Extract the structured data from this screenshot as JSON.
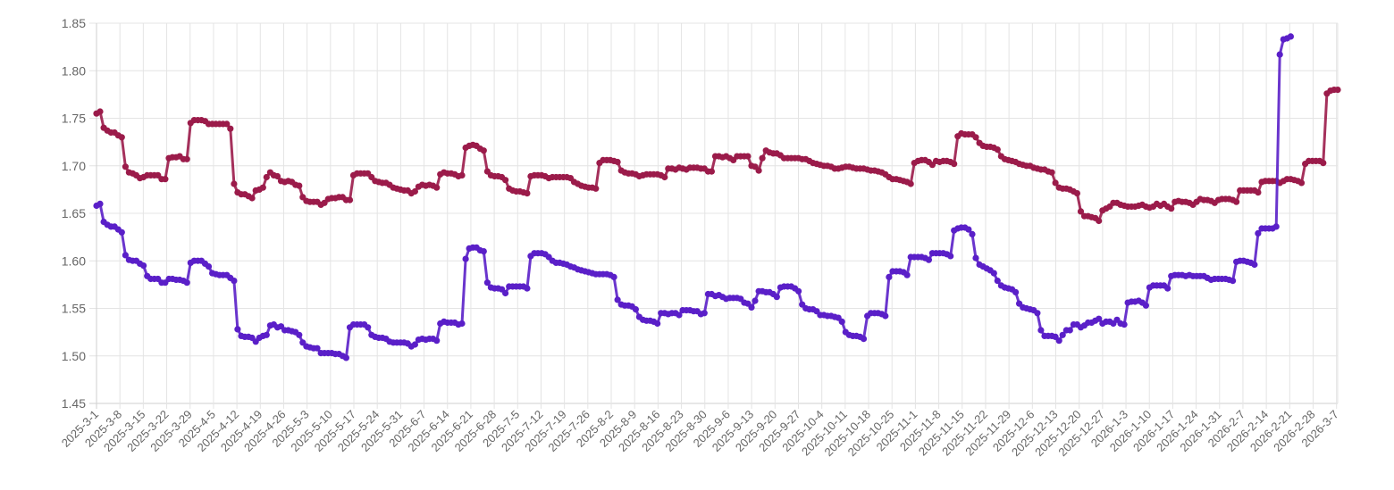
{
  "chart_data": {
    "type": "line",
    "title": "",
    "xlabel": "",
    "ylabel": "",
    "ylim": [
      1.45,
      1.85
    ],
    "yticks": [
      "1.45",
      "1.50",
      "1.55",
      "1.60",
      "1.65",
      "1.70",
      "1.75",
      "1.80",
      "1.85"
    ],
    "xticks": [
      "2025-3-1",
      "2025-3-8",
      "2025-3-15",
      "2025-3-22",
      "2025-3-29",
      "2025-4-5",
      "2025-4-12",
      "2025-4-19",
      "2025-4-26",
      "2025-5-3",
      "2025-5-10",
      "2025-5-17",
      "2025-5-24",
      "2025-5-31",
      "2025-6-7",
      "2025-6-14",
      "2025-6-21",
      "2025-6-28",
      "2025-7-5",
      "2025-7-12",
      "2025-7-19",
      "2025-7-26",
      "2025-8-2",
      "2025-8-9",
      "2025-8-16",
      "2025-8-23",
      "2025-8-30",
      "2025-9-6",
      "2025-9-13",
      "2025-9-20",
      "2025-9-27",
      "2025-10-4",
      "2025-10-11",
      "2025-10-18",
      "2025-10-25",
      "2025-11-1",
      "2025-11-8",
      "2025-11-15",
      "2025-11-22",
      "2025-11-29",
      "2025-12-6",
      "2025-12-13",
      "2025-12-20",
      "2025-12-27",
      "2026-1-3",
      "2026-1-10",
      "2026-1-17",
      "2026-1-24",
      "2026-1-31",
      "2026-2-7",
      "2026-2-14",
      "2026-2-21",
      "2026-2-28",
      "2026-3-7"
    ],
    "grid": true,
    "legend": "none",
    "series": [
      {
        "color": "#9b1b4a",
        "values": [
          1.755,
          1.757,
          1.74,
          1.737,
          1.735,
          1.735,
          1.732,
          1.73,
          1.699,
          1.693,
          1.692,
          1.69,
          1.687,
          1.688,
          1.69,
          1.69,
          1.69,
          1.69,
          1.686,
          1.686,
          1.708,
          1.709,
          1.709,
          1.71,
          1.707,
          1.707,
          1.745,
          1.748,
          1.748,
          1.748,
          1.747,
          1.744,
          1.744,
          1.744,
          1.744,
          1.744,
          1.744,
          1.739,
          1.681,
          1.672,
          1.67,
          1.67,
          1.668,
          1.666,
          1.674,
          1.675,
          1.677,
          1.688,
          1.693,
          1.69,
          1.689,
          1.684,
          1.683,
          1.684,
          1.683,
          1.68,
          1.679,
          1.667,
          1.663,
          1.662,
          1.662,
          1.662,
          1.659,
          1.661,
          1.665,
          1.666,
          1.666,
          1.667,
          1.667,
          1.664,
          1.664,
          1.69,
          1.692,
          1.692,
          1.692,
          1.692,
          1.688,
          1.684,
          1.683,
          1.682,
          1.682,
          1.68,
          1.677,
          1.676,
          1.675,
          1.674,
          1.674,
          1.671,
          1.673,
          1.678,
          1.68,
          1.679,
          1.68,
          1.679,
          1.677,
          1.691,
          1.693,
          1.692,
          1.692,
          1.691,
          1.689,
          1.69,
          1.719,
          1.721,
          1.722,
          1.721,
          1.718,
          1.716,
          1.694,
          1.69,
          1.689,
          1.689,
          1.688,
          1.685,
          1.676,
          1.674,
          1.673,
          1.673,
          1.672,
          1.671,
          1.689,
          1.69,
          1.69,
          1.69,
          1.689,
          1.687,
          1.688,
          1.688,
          1.688,
          1.688,
          1.688,
          1.687,
          1.683,
          1.681,
          1.679,
          1.678,
          1.677,
          1.677,
          1.676,
          1.703,
          1.706,
          1.706,
          1.706,
          1.705,
          1.704,
          1.695,
          1.693,
          1.692,
          1.692,
          1.691,
          1.689,
          1.69,
          1.691,
          1.691,
          1.691,
          1.691,
          1.69,
          1.688,
          1.697,
          1.697,
          1.696,
          1.698,
          1.697,
          1.696,
          1.698,
          1.698,
          1.698,
          1.697,
          1.697,
          1.694,
          1.694,
          1.71,
          1.71,
          1.709,
          1.71,
          1.708,
          1.706,
          1.71,
          1.71,
          1.71,
          1.71,
          1.7,
          1.699,
          1.695,
          1.708,
          1.716,
          1.714,
          1.713,
          1.713,
          1.711,
          1.708,
          1.708,
          1.708,
          1.708,
          1.708,
          1.707,
          1.707,
          1.705,
          1.703,
          1.702,
          1.701,
          1.7,
          1.7,
          1.699,
          1.697,
          1.697,
          1.698,
          1.699,
          1.699,
          1.698,
          1.697,
          1.697,
          1.697,
          1.696,
          1.695,
          1.695,
          1.694,
          1.693,
          1.691,
          1.688,
          1.686,
          1.686,
          1.685,
          1.684,
          1.683,
          1.681,
          1.703,
          1.705,
          1.706,
          1.706,
          1.704,
          1.701,
          1.705,
          1.704,
          1.705,
          1.705,
          1.704,
          1.702,
          1.731,
          1.734,
          1.733,
          1.733,
          1.733,
          1.73,
          1.724,
          1.721,
          1.72,
          1.72,
          1.719,
          1.717,
          1.71,
          1.707,
          1.706,
          1.705,
          1.704,
          1.702,
          1.701,
          1.7,
          1.7,
          1.698,
          1.697,
          1.696,
          1.696,
          1.694,
          1.693,
          1.682,
          1.677,
          1.676,
          1.676,
          1.675,
          1.673,
          1.671,
          1.652,
          1.647,
          1.647,
          1.646,
          1.645,
          1.642,
          1.653,
          1.655,
          1.657,
          1.661,
          1.661,
          1.659,
          1.658,
          1.657,
          1.657,
          1.657,
          1.658,
          1.659,
          1.657,
          1.656,
          1.657,
          1.66,
          1.658,
          1.66,
          1.657,
          1.655,
          1.662,
          1.663,
          1.662,
          1.662,
          1.661,
          1.659,
          1.662,
          1.665,
          1.664,
          1.664,
          1.663,
          1.661,
          1.664,
          1.665,
          1.665,
          1.665,
          1.664,
          1.662,
          1.674,
          1.674,
          1.674,
          1.674,
          1.674,
          1.672,
          1.683,
          1.684,
          1.684,
          1.684,
          1.684,
          1.682,
          1.684,
          1.686,
          1.686,
          1.685,
          1.684,
          1.682,
          1.702,
          1.705,
          1.705,
          1.705,
          1.705,
          1.703,
          1.776,
          1.779,
          1.78,
          1.78
        ]
      },
      {
        "color": "#5a1fc8",
        "values": [
          1.658,
          1.66,
          1.641,
          1.638,
          1.636,
          1.636,
          1.633,
          1.63,
          1.606,
          1.601,
          1.6,
          1.6,
          1.597,
          1.595,
          1.584,
          1.581,
          1.581,
          1.581,
          1.577,
          1.577,
          1.581,
          1.581,
          1.58,
          1.58,
          1.579,
          1.577,
          1.598,
          1.6,
          1.6,
          1.6,
          1.597,
          1.594,
          1.587,
          1.586,
          1.585,
          1.585,
          1.585,
          1.582,
          1.579,
          1.528,
          1.521,
          1.52,
          1.52,
          1.519,
          1.515,
          1.519,
          1.521,
          1.522,
          1.532,
          1.533,
          1.53,
          1.531,
          1.527,
          1.527,
          1.526,
          1.525,
          1.522,
          1.514,
          1.51,
          1.509,
          1.508,
          1.508,
          1.503,
          1.503,
          1.503,
          1.503,
          1.502,
          1.502,
          1.5,
          1.498,
          1.53,
          1.533,
          1.533,
          1.533,
          1.533,
          1.53,
          1.522,
          1.52,
          1.519,
          1.519,
          1.518,
          1.515,
          1.514,
          1.514,
          1.514,
          1.514,
          1.513,
          1.51,
          1.512,
          1.517,
          1.518,
          1.517,
          1.518,
          1.518,
          1.516,
          1.534,
          1.536,
          1.535,
          1.535,
          1.535,
          1.533,
          1.534,
          1.602,
          1.613,
          1.614,
          1.614,
          1.611,
          1.61,
          1.577,
          1.572,
          1.571,
          1.571,
          1.57,
          1.566,
          1.573,
          1.573,
          1.573,
          1.573,
          1.573,
          1.571,
          1.605,
          1.608,
          1.608,
          1.608,
          1.607,
          1.604,
          1.6,
          1.598,
          1.598,
          1.597,
          1.596,
          1.594,
          1.593,
          1.591,
          1.59,
          1.589,
          1.588,
          1.587,
          1.586,
          1.586,
          1.586,
          1.586,
          1.585,
          1.583,
          1.559,
          1.554,
          1.553,
          1.553,
          1.552,
          1.549,
          1.541,
          1.538,
          1.537,
          1.537,
          1.536,
          1.534,
          1.545,
          1.545,
          1.544,
          1.545,
          1.545,
          1.543,
          1.548,
          1.548,
          1.548,
          1.547,
          1.547,
          1.544,
          1.545,
          1.565,
          1.565,
          1.563,
          1.564,
          1.562,
          1.56,
          1.561,
          1.561,
          1.561,
          1.56,
          1.556,
          1.555,
          1.551,
          1.558,
          1.568,
          1.568,
          1.567,
          1.567,
          1.565,
          1.562,
          1.572,
          1.573,
          1.573,
          1.573,
          1.571,
          1.568,
          1.554,
          1.55,
          1.549,
          1.549,
          1.547,
          1.543,
          1.543,
          1.542,
          1.542,
          1.541,
          1.54,
          1.536,
          1.525,
          1.522,
          1.521,
          1.521,
          1.52,
          1.518,
          1.542,
          1.545,
          1.545,
          1.545,
          1.544,
          1.542,
          1.583,
          1.589,
          1.589,
          1.589,
          1.588,
          1.585,
          1.604,
          1.604,
          1.604,
          1.604,
          1.603,
          1.601,
          1.608,
          1.608,
          1.608,
          1.608,
          1.607,
          1.605,
          1.632,
          1.634,
          1.635,
          1.635,
          1.633,
          1.628,
          1.603,
          1.596,
          1.594,
          1.592,
          1.59,
          1.587,
          1.579,
          1.574,
          1.572,
          1.571,
          1.57,
          1.567,
          1.555,
          1.551,
          1.55,
          1.549,
          1.548,
          1.545,
          1.527,
          1.521,
          1.521,
          1.521,
          1.52,
          1.516,
          1.522,
          1.527,
          1.527,
          1.533,
          1.533,
          1.53,
          1.532,
          1.535,
          1.535,
          1.537,
          1.539,
          1.534,
          1.536,
          1.536,
          1.534,
          1.538,
          1.534,
          1.533,
          1.556,
          1.557,
          1.557,
          1.558,
          1.556,
          1.553,
          1.572,
          1.574,
          1.574,
          1.574,
          1.574,
          1.571,
          1.584,
          1.585,
          1.585,
          1.585,
          1.584,
          1.585,
          1.584,
          1.584,
          1.584,
          1.584,
          1.582,
          1.58,
          1.581,
          1.581,
          1.581,
          1.581,
          1.58,
          1.579,
          1.599,
          1.6,
          1.6,
          1.599,
          1.598,
          1.596,
          1.629,
          1.634,
          1.634,
          1.634,
          1.634,
          1.636,
          1.817,
          1.833,
          1.834,
          1.836
        ]
      }
    ]
  }
}
